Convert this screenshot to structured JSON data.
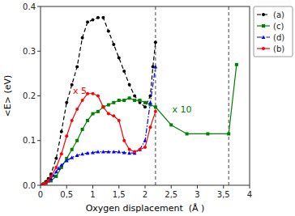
{
  "chart_data": {
    "type": "line",
    "title": "",
    "x_label": "Oxygen displacement  (Å )",
    "y_label": "<E> (eV)",
    "xlim": [
      0,
      4.0
    ],
    "ylim": [
      0,
      0.4
    ],
    "xticks": [
      0,
      {
        "value": 0.5,
        "label": "0,5"
      },
      1,
      {
        "value": 1.5,
        "label": "1,5"
      },
      2,
      {
        "value": 2.5,
        "label": "2,5"
      },
      3,
      {
        "value": 3.5,
        "label": "3,5"
      },
      4
    ],
    "yticks": [
      {
        "value": 0,
        "label": "0.0"
      },
      0.1,
      0.2,
      0.3,
      0.4
    ],
    "grid": false,
    "legend": "upper right",
    "vlines": [
      2.2,
      3.6
    ],
    "annotations": [
      {
        "text": "x 5",
        "x": 0.62,
        "y": 0.205,
        "color": "red"
      },
      {
        "text": "x 10",
        "x": 2.52,
        "y": 0.163,
        "color": "green"
      }
    ],
    "series": [
      {
        "name": "(a)",
        "color": "black",
        "line_style": "dashed",
        "marker": "circle",
        "x": [
          0.0,
          0.05,
          0.1,
          0.15,
          0.2,
          0.3,
          0.4,
          0.5,
          0.6,
          0.7,
          0.8,
          0.9,
          1.0,
          1.1,
          1.2,
          1.3,
          1.4,
          1.5,
          1.6,
          1.7,
          1.8,
          1.9,
          2.0,
          2.1,
          2.15,
          2.2
        ],
        "values": [
          0.0,
          0.003,
          0.008,
          0.015,
          0.025,
          0.06,
          0.12,
          0.185,
          0.225,
          0.265,
          0.33,
          0.365,
          0.37,
          0.375,
          0.375,
          0.345,
          0.315,
          0.285,
          0.255,
          0.225,
          0.2,
          0.185,
          0.175,
          0.2,
          0.265,
          0.32
        ]
      },
      {
        "name": "(c)",
        "color": "green",
        "line_style": "solid",
        "marker": "square",
        "x": [
          0.0,
          0.05,
          0.1,
          0.2,
          0.3,
          0.4,
          0.5,
          0.6,
          0.7,
          0.8,
          0.9,
          1.0,
          1.1,
          1.2,
          1.3,
          1.4,
          1.5,
          1.6,
          1.7,
          1.8,
          1.9,
          2.0,
          2.1,
          2.2,
          2.5,
          2.8,
          3.2,
          3.6,
          3.75
        ],
        "values": [
          0.0,
          0.002,
          0.005,
          0.01,
          0.02,
          0.04,
          0.06,
          0.08,
          0.1,
          0.125,
          0.145,
          0.16,
          0.165,
          0.175,
          0.18,
          0.185,
          0.19,
          0.19,
          0.195,
          0.19,
          0.19,
          0.185,
          0.18,
          0.175,
          0.135,
          0.115,
          0.115,
          0.115,
          0.27
        ]
      },
      {
        "name": "(d)",
        "color": "blue",
        "line_style": "dashdot",
        "marker": "triangle",
        "x": [
          0.0,
          0.05,
          0.1,
          0.15,
          0.2,
          0.25,
          0.3,
          0.35,
          0.4,
          0.5,
          0.6,
          0.7,
          0.8,
          0.9,
          1.0,
          1.1,
          1.2,
          1.3,
          1.4,
          1.5,
          1.6,
          1.7,
          1.8,
          1.9,
          2.0,
          2.1,
          2.2
        ],
        "values": [
          0.0,
          0.002,
          0.005,
          0.01,
          0.015,
          0.022,
          0.03,
          0.038,
          0.045,
          0.055,
          0.062,
          0.067,
          0.07,
          0.072,
          0.073,
          0.075,
          0.075,
          0.075,
          0.075,
          0.075,
          0.073,
          0.072,
          0.072,
          0.08,
          0.1,
          0.185,
          0.265
        ]
      },
      {
        "name": "(b)",
        "color": "red",
        "line_style": "solid",
        "marker": "circle",
        "x": [
          0.0,
          0.05,
          0.1,
          0.15,
          0.2,
          0.3,
          0.4,
          0.5,
          0.6,
          0.7,
          0.8,
          0.9,
          1.0,
          1.1,
          1.2,
          1.3,
          1.4,
          1.5,
          1.6,
          1.7,
          1.8,
          1.9,
          2.0,
          2.1,
          2.2
        ],
        "values": [
          0.0,
          0.002,
          0.005,
          0.01,
          0.02,
          0.04,
          0.07,
          0.11,
          0.145,
          0.17,
          0.19,
          0.205,
          0.205,
          0.2,
          0.175,
          0.16,
          0.155,
          0.145,
          0.1,
          0.08,
          0.075,
          0.08,
          0.085,
          0.13,
          0.165
        ]
      }
    ]
  }
}
